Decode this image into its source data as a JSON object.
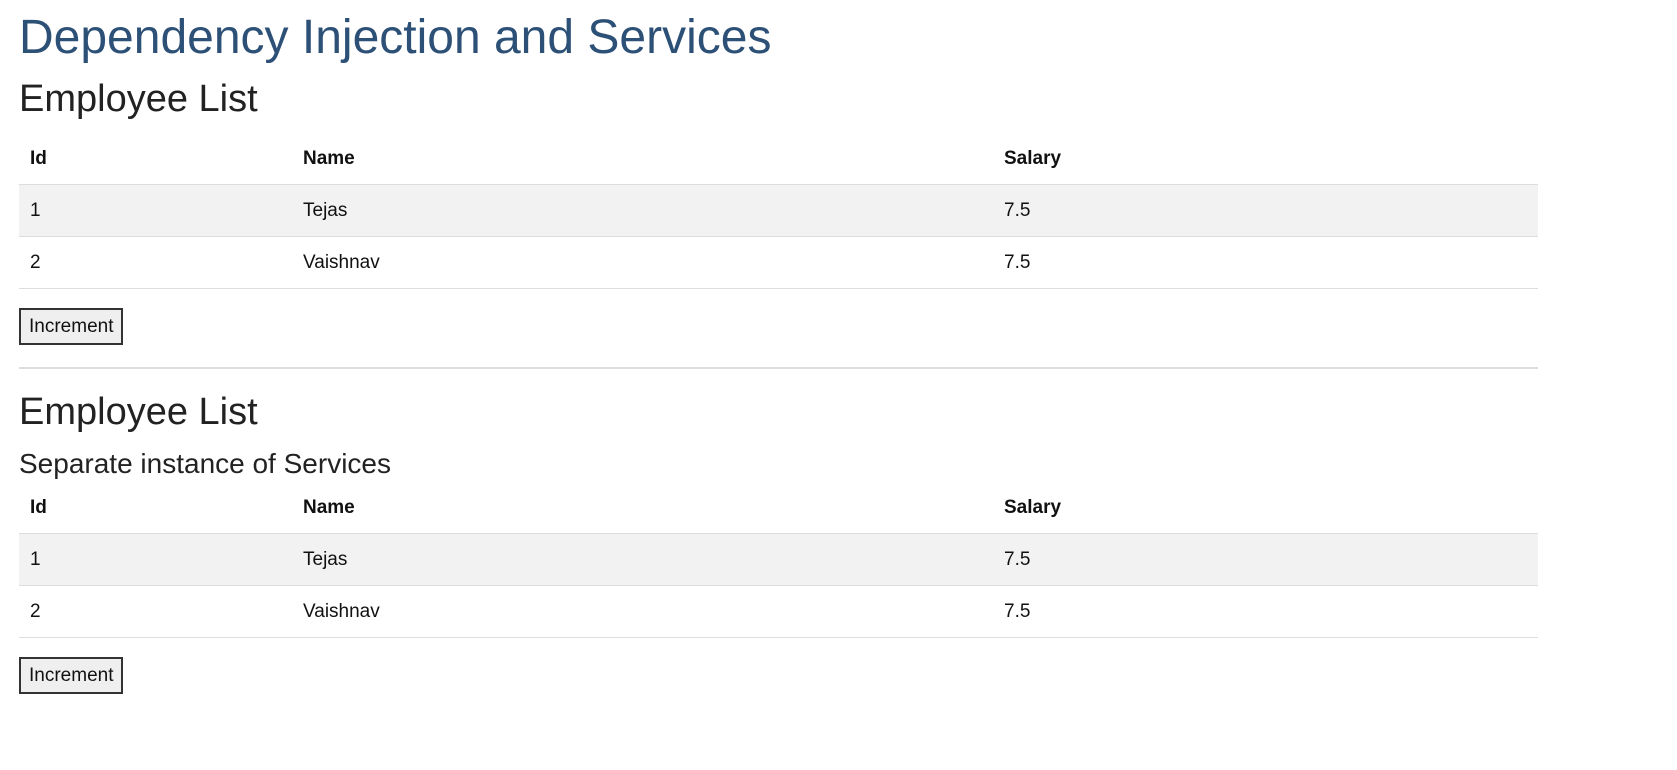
{
  "page": {
    "title": "Dependency Injection and Services"
  },
  "sections": [
    {
      "title": "Employee List",
      "subtitle": "",
      "columns": [
        "Id",
        "Name",
        "Salary"
      ],
      "rows": [
        {
          "id": "1",
          "name": "Tejas",
          "salary": "7.5"
        },
        {
          "id": "2",
          "name": "Vaishnav",
          "salary": "7.5"
        }
      ],
      "button_label": "Increment"
    },
    {
      "title": "Employee List",
      "subtitle": "Separate instance of Services",
      "columns": [
        "Id",
        "Name",
        "Salary"
      ],
      "rows": [
        {
          "id": "1",
          "name": "Tejas",
          "salary": "7.5"
        },
        {
          "id": "2",
          "name": "Vaishnav",
          "salary": "7.5"
        }
      ],
      "button_label": "Increment"
    }
  ],
  "colors": {
    "title": "#2d5077",
    "stripe": "#f2f2f2",
    "border": "#dddddd"
  }
}
